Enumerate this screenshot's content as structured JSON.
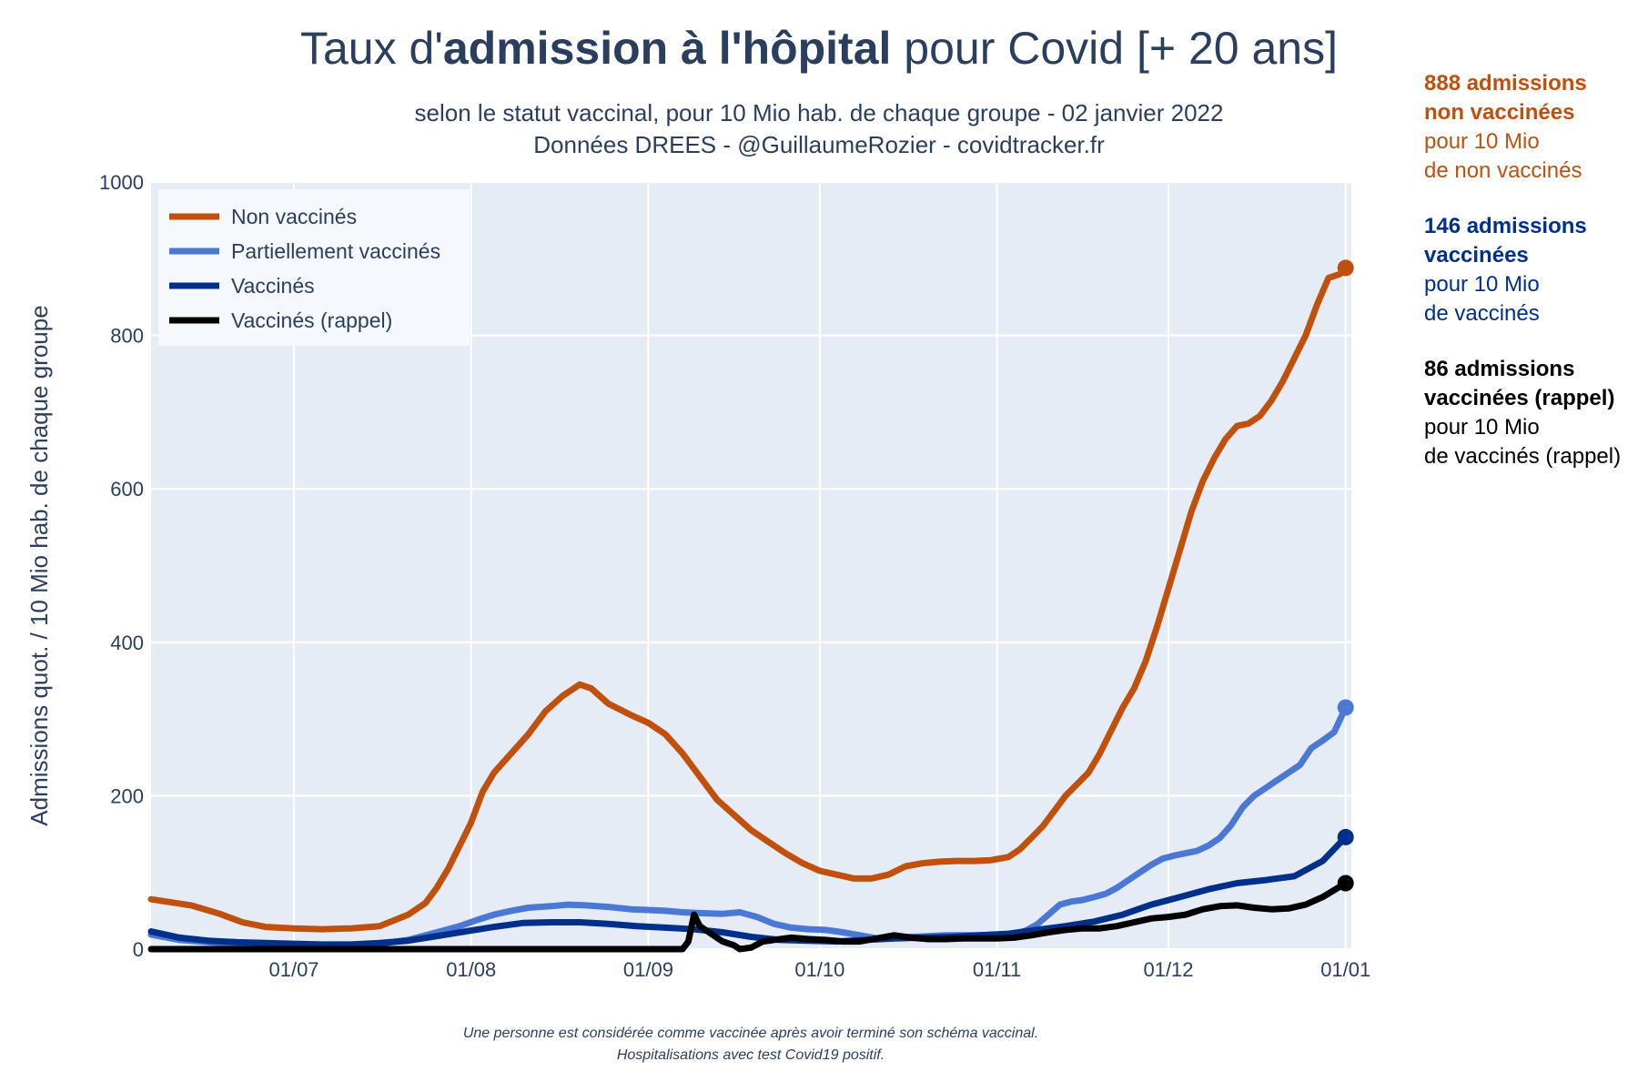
{
  "chart_data": {
    "type": "line",
    "title": {
      "prefix": "Taux d'",
      "bold": "admission à l'hôpital",
      "suffix": " pour Covid [+ 20 ans]"
    },
    "subtitle_line1": "selon le statut vaccinal, pour 10 Mio hab. de chaque groupe - 02 janvier 2022",
    "subtitle_line2": "Données DREES - @GuillaumeRozier - covidtracker.fr",
    "ylabel": "Admissions quot. / 10 Mio hab. de chaque groupe",
    "xlabel": "",
    "ylim": [
      0,
      1000
    ],
    "yticks": [
      0,
      200,
      400,
      600,
      800,
      1000
    ],
    "xlim": [
      0,
      210
    ],
    "xticks": [
      {
        "day": 25,
        "label": "01/07"
      },
      {
        "day": 56,
        "label": "01/08"
      },
      {
        "day": 87,
        "label": "01/09"
      },
      {
        "day": 117,
        "label": "01/10"
      },
      {
        "day": 148,
        "label": "01/11"
      },
      {
        "day": 178,
        "label": "01/12"
      },
      {
        "day": 209,
        "label": "01/01"
      }
    ],
    "grid": true,
    "legend_position": "top-left",
    "series": [
      {
        "name": "Non vaccinés",
        "color": "#c0500c",
        "points": [
          [
            0,
            65
          ],
          [
            7,
            57
          ],
          [
            12,
            46
          ],
          [
            16,
            35
          ],
          [
            20,
            29
          ],
          [
            25,
            27
          ],
          [
            30,
            26
          ],
          [
            35,
            27
          ],
          [
            40,
            30
          ],
          [
            45,
            45
          ],
          [
            48,
            60
          ],
          [
            50,
            80
          ],
          [
            52,
            105
          ],
          [
            54,
            135
          ],
          [
            56,
            165
          ],
          [
            58,
            205
          ],
          [
            60,
            230
          ],
          [
            63,
            255
          ],
          [
            66,
            280
          ],
          [
            69,
            310
          ],
          [
            72,
            330
          ],
          [
            75,
            345
          ],
          [
            77,
            340
          ],
          [
            80,
            320
          ],
          [
            84,
            305
          ],
          [
            87,
            295
          ],
          [
            90,
            280
          ],
          [
            93,
            255
          ],
          [
            96,
            225
          ],
          [
            99,
            195
          ],
          [
            102,
            175
          ],
          [
            105,
            155
          ],
          [
            108,
            140
          ],
          [
            111,
            125
          ],
          [
            114,
            112
          ],
          [
            117,
            102
          ],
          [
            120,
            97
          ],
          [
            123,
            92
          ],
          [
            126,
            92
          ],
          [
            129,
            97
          ],
          [
            132,
            108
          ],
          [
            135,
            112
          ],
          [
            138,
            114
          ],
          [
            141,
            115
          ],
          [
            144,
            115
          ],
          [
            147,
            116
          ],
          [
            150,
            120
          ],
          [
            152,
            130
          ],
          [
            154,
            145
          ],
          [
            156,
            160
          ],
          [
            158,
            180
          ],
          [
            160,
            200
          ],
          [
            162,
            215
          ],
          [
            164,
            230
          ],
          [
            166,
            255
          ],
          [
            168,
            285
          ],
          [
            170,
            315
          ],
          [
            172,
            340
          ],
          [
            174,
            375
          ],
          [
            176,
            420
          ],
          [
            178,
            470
          ],
          [
            180,
            520
          ],
          [
            182,
            570
          ],
          [
            184,
            610
          ],
          [
            186,
            640
          ],
          [
            188,
            665
          ],
          [
            190,
            682
          ],
          [
            192,
            685
          ],
          [
            194,
            695
          ],
          [
            196,
            715
          ],
          [
            198,
            740
          ],
          [
            200,
            770
          ],
          [
            202,
            800
          ],
          [
            204,
            840
          ],
          [
            206,
            875
          ],
          [
            208,
            880
          ],
          [
            209,
            888
          ]
        ]
      },
      {
        "name": "Partiellement vaccinés",
        "color": "#4a78d4",
        "points": [
          [
            0,
            19
          ],
          [
            5,
            12
          ],
          [
            10,
            9
          ],
          [
            15,
            7
          ],
          [
            20,
            6
          ],
          [
            25,
            6
          ],
          [
            30,
            5
          ],
          [
            35,
            5
          ],
          [
            40,
            7
          ],
          [
            45,
            12
          ],
          [
            50,
            22
          ],
          [
            54,
            30
          ],
          [
            57,
            38
          ],
          [
            60,
            45
          ],
          [
            63,
            50
          ],
          [
            66,
            54
          ],
          [
            70,
            56
          ],
          [
            73,
            58
          ],
          [
            76,
            57
          ],
          [
            80,
            55
          ],
          [
            84,
            52
          ],
          [
            87,
            51
          ],
          [
            90,
            50
          ],
          [
            93,
            48
          ],
          [
            96,
            47
          ],
          [
            100,
            46
          ],
          [
            103,
            48
          ],
          [
            106,
            42
          ],
          [
            109,
            33
          ],
          [
            112,
            28
          ],
          [
            115,
            26
          ],
          [
            118,
            25
          ],
          [
            121,
            22
          ],
          [
            124,
            18
          ],
          [
            127,
            14
          ],
          [
            130,
            14
          ],
          [
            133,
            16
          ],
          [
            136,
            17
          ],
          [
            139,
            18
          ],
          [
            142,
            18
          ],
          [
            145,
            18
          ],
          [
            148,
            19
          ],
          [
            151,
            20
          ],
          [
            153,
            24
          ],
          [
            155,
            32
          ],
          [
            157,
            45
          ],
          [
            159,
            58
          ],
          [
            161,
            62
          ],
          [
            163,
            64
          ],
          [
            165,
            68
          ],
          [
            167,
            72
          ],
          [
            169,
            80
          ],
          [
            171,
            90
          ],
          [
            173,
            100
          ],
          [
            175,
            110
          ],
          [
            177,
            118
          ],
          [
            179,
            122
          ],
          [
            181,
            125
          ],
          [
            183,
            128
          ],
          [
            185,
            135
          ],
          [
            187,
            145
          ],
          [
            189,
            162
          ],
          [
            191,
            185
          ],
          [
            193,
            200
          ],
          [
            195,
            210
          ],
          [
            197,
            220
          ],
          [
            199,
            230
          ],
          [
            201,
            240
          ],
          [
            203,
            262
          ],
          [
            205,
            272
          ],
          [
            207,
            283
          ],
          [
            209,
            315
          ]
        ]
      },
      {
        "name": "Vaccinés",
        "color": "#00308c",
        "points": [
          [
            0,
            23
          ],
          [
            5,
            15
          ],
          [
            10,
            11
          ],
          [
            15,
            9
          ],
          [
            20,
            8
          ],
          [
            25,
            7
          ],
          [
            30,
            6
          ],
          [
            35,
            6
          ],
          [
            40,
            8
          ],
          [
            45,
            11
          ],
          [
            50,
            17
          ],
          [
            55,
            23
          ],
          [
            60,
            29
          ],
          [
            65,
            34
          ],
          [
            70,
            35
          ],
          [
            75,
            35
          ],
          [
            80,
            33
          ],
          [
            85,
            30
          ],
          [
            90,
            28
          ],
          [
            95,
            26
          ],
          [
            100,
            22
          ],
          [
            105,
            16
          ],
          [
            110,
            12
          ],
          [
            115,
            11
          ],
          [
            120,
            10
          ],
          [
            125,
            12
          ],
          [
            130,
            14
          ],
          [
            135,
            15
          ],
          [
            140,
            16
          ],
          [
            145,
            18
          ],
          [
            150,
            20
          ],
          [
            155,
            25
          ],
          [
            160,
            30
          ],
          [
            165,
            36
          ],
          [
            170,
            45
          ],
          [
            175,
            58
          ],
          [
            180,
            68
          ],
          [
            185,
            78
          ],
          [
            190,
            86
          ],
          [
            195,
            90
          ],
          [
            200,
            95
          ],
          [
            205,
            115
          ],
          [
            209,
            146
          ]
        ]
      },
      {
        "name": "Vaccinés (rappel)",
        "color": "#000000",
        "points": [
          [
            0,
            0
          ],
          [
            10,
            0
          ],
          [
            20,
            0
          ],
          [
            30,
            0
          ],
          [
            40,
            0
          ],
          [
            50,
            0
          ],
          [
            60,
            0
          ],
          [
            70,
            0
          ],
          [
            80,
            0
          ],
          [
            90,
            0
          ],
          [
            93,
            0
          ],
          [
            94,
            10
          ],
          [
            95,
            45
          ],
          [
            96,
            30
          ],
          [
            98,
            20
          ],
          [
            100,
            10
          ],
          [
            102,
            5
          ],
          [
            103,
            0
          ],
          [
            105,
            2
          ],
          [
            107,
            10
          ],
          [
            109,
            12
          ],
          [
            112,
            15
          ],
          [
            115,
            13
          ],
          [
            118,
            12
          ],
          [
            121,
            10
          ],
          [
            124,
            10
          ],
          [
            127,
            14
          ],
          [
            130,
            18
          ],
          [
            133,
            15
          ],
          [
            136,
            13
          ],
          [
            139,
            13
          ],
          [
            142,
            14
          ],
          [
            145,
            14
          ],
          [
            148,
            14
          ],
          [
            151,
            15
          ],
          [
            154,
            18
          ],
          [
            157,
            22
          ],
          [
            160,
            25
          ],
          [
            163,
            27
          ],
          [
            166,
            27
          ],
          [
            169,
            30
          ],
          [
            172,
            35
          ],
          [
            175,
            40
          ],
          [
            178,
            42
          ],
          [
            181,
            45
          ],
          [
            184,
            52
          ],
          [
            187,
            56
          ],
          [
            190,
            57
          ],
          [
            193,
            54
          ],
          [
            196,
            52
          ],
          [
            199,
            53
          ],
          [
            202,
            58
          ],
          [
            205,
            68
          ],
          [
            209,
            86
          ]
        ]
      }
    ]
  },
  "annotations": [
    {
      "bold1": "888 admissions",
      "bold2": "non vaccinées",
      "line3": "pour 10 Mio",
      "line4": "de non vaccinés",
      "color": "#c0500c"
    },
    {
      "bold1": "146 admissions",
      "bold2": "vaccinées",
      "line3": "pour 10 Mio",
      "line4": "de vaccinés",
      "color": "#00308c"
    },
    {
      "bold1": "86 admissions",
      "bold2": "vaccinées (rappel)",
      "line3": "pour 10 Mio",
      "line4": "de vaccinés (rappel)",
      "color": "#000000"
    }
  ],
  "footnote": {
    "line1": "Une personne est considérée comme vaccinée après avoir terminé son schéma vaccinal.",
    "line2": "Hospitalisations avec test Covid19 positif."
  },
  "colors": {
    "plot_background": "#e5ecf6",
    "grid": "#ffffff",
    "text": "#2a3f5f",
    "legend_background": "#f5f8fc"
  }
}
